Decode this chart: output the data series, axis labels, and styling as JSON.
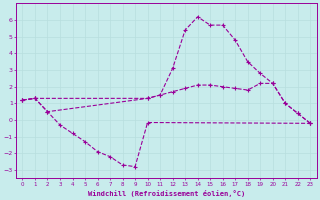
{
  "xlabel": "Windchill (Refroidissement éolien,°C)",
  "bg_color": "#c8ecec",
  "grid_color": "#b8dede",
  "line_color": "#990099",
  "xlim": [
    -0.5,
    23.5
  ],
  "ylim": [
    -3.5,
    7.0
  ],
  "xticks": [
    0,
    1,
    2,
    3,
    4,
    5,
    6,
    7,
    8,
    9,
    10,
    11,
    12,
    13,
    14,
    15,
    16,
    17,
    18,
    19,
    20,
    21,
    22,
    23
  ],
  "yticks": [
    -3,
    -2,
    -1,
    0,
    1,
    2,
    3,
    4,
    5,
    6
  ],
  "s1_x": [
    0,
    1,
    10,
    11,
    12,
    13,
    14,
    15,
    16,
    17,
    18,
    19,
    20,
    21,
    22,
    23
  ],
  "s1_y": [
    1.2,
    1.3,
    1.3,
    1.5,
    3.1,
    5.4,
    6.2,
    5.7,
    5.7,
    4.8,
    3.5,
    2.8,
    2.2,
    1.0,
    0.4,
    -0.2
  ],
  "s2_x": [
    0,
    1,
    2,
    3,
    4,
    5,
    6,
    7,
    8,
    9,
    10,
    23
  ],
  "s2_y": [
    1.2,
    1.3,
    0.5,
    -0.3,
    -0.8,
    -1.3,
    -1.9,
    -2.2,
    -2.7,
    -2.8,
    -0.15,
    -0.2
  ],
  "s3_x": [
    0,
    1,
    2,
    10,
    11,
    12,
    13,
    14,
    15,
    16,
    17,
    18,
    19,
    20,
    21,
    22,
    23
  ],
  "s3_y": [
    1.2,
    1.3,
    0.5,
    1.3,
    1.5,
    1.7,
    1.9,
    2.1,
    2.1,
    2.0,
    1.9,
    1.8,
    2.2,
    2.2,
    1.0,
    0.4,
    -0.2
  ]
}
